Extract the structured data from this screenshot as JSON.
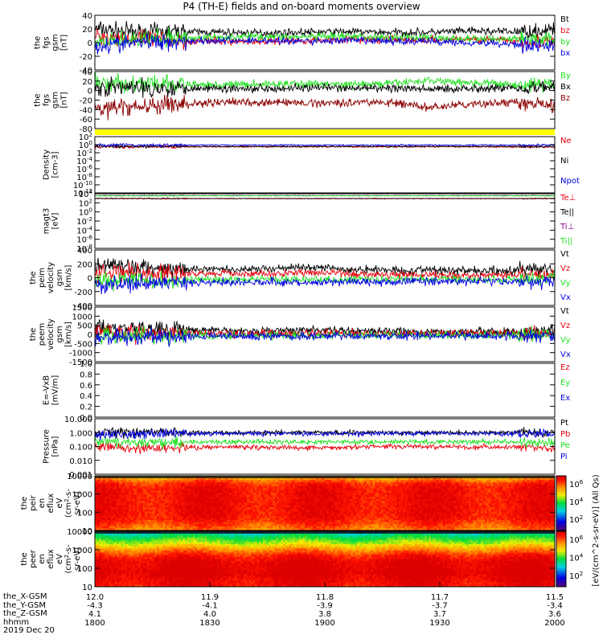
{
  "title": "P4 (TH-E) fields and on-board moments overview",
  "footer": {
    "row_labels": [
      "the_X-GSM",
      "the_Y-GSM",
      "the_Z-GSM",
      "hhmm"
    ],
    "date": "2019 Dec 20",
    "columns": [
      [
        "12.0",
        "-4.3",
        "4.1",
        "1800"
      ],
      [
        "11.9",
        "-4.1",
        "4.0",
        "1830"
      ],
      [
        "11.8",
        "-3.9",
        "3.8",
        "1900"
      ],
      [
        "11.7",
        "-3.7",
        "3.7",
        "1930"
      ],
      [
        "11.5",
        "-3.4",
        "3.6",
        "2000"
      ]
    ]
  },
  "colorbar": {
    "label": "[eV/(cm^2-s-sr-eV)] (All Qs)",
    "top_ticks": [
      "10^6",
      "10^4",
      "10^2"
    ],
    "bottom_ticks": [
      "10^6",
      "10^4",
      "10^2"
    ]
  },
  "chart_data": [
    {
      "type": "line",
      "ylabel": [
        "the",
        "fgs",
        "gsm",
        "[nT]"
      ],
      "ylim": [
        -40,
        40
      ],
      "yticks": [
        "40",
        "20",
        "0",
        "-20",
        "-40"
      ],
      "series": [
        {
          "name": "Bt",
          "color": "#000000",
          "values": [
            20,
            15,
            16,
            15,
            14,
            15,
            16,
            15,
            15,
            17,
            16,
            18
          ]
        },
        {
          "name": "bz",
          "color": "#e8000b",
          "values": [
            10,
            5,
            3,
            2,
            2,
            3,
            5,
            4,
            4,
            5,
            3,
            0
          ]
        },
        {
          "name": "by",
          "color": "#1fe01f",
          "values": [
            0,
            5,
            6,
            8,
            9,
            8,
            9,
            8,
            7,
            5,
            6,
            5
          ]
        },
        {
          "name": "bx",
          "color": "#0000e0",
          "values": [
            -5,
            0,
            2,
            3,
            3,
            2,
            3,
            2,
            2,
            0,
            -2,
            -5
          ]
        }
      ]
    },
    {
      "type": "line",
      "ylabel": [
        "the",
        "fgs",
        "gsm",
        "[nT]"
      ],
      "ylim": [
        -90,
        40
      ],
      "yticks": [
        "40",
        "20",
        "0",
        "-20",
        "-40",
        "-60",
        "-80"
      ],
      "series": [
        {
          "name": "By",
          "color": "#1fe01f",
          "values": [
            15,
            12,
            10,
            10,
            11,
            12,
            10,
            12,
            20,
            15,
            10,
            12
          ]
        },
        {
          "name": "Bx",
          "color": "#000000",
          "values": [
            5,
            2,
            3,
            2,
            2,
            3,
            2,
            2,
            0,
            2,
            3,
            5
          ]
        },
        {
          "name": "Bz",
          "color": "#8b0000",
          "values": [
            -45,
            -40,
            -35,
            -30,
            -30,
            -32,
            -30,
            -30,
            -42,
            -35,
            -30,
            -40
          ]
        }
      ]
    },
    {
      "type": "line",
      "ylabel": [
        "Density",
        "[cm-3]"
      ],
      "ylim_log": [
        -12,
        2
      ],
      "yticks": [
        "10^2",
        "10^0",
        "10^-2",
        "10^-4",
        "10^-6",
        "10^-8",
        "10^-10",
        "10^-12"
      ],
      "series": [
        {
          "name": "Ne",
          "color": "#e8000b",
          "values": [
            0.3,
            0.3,
            0.3,
            0.3,
            0.3,
            0.3,
            0.3,
            0.3,
            0.3,
            0.3,
            0.3,
            0.3
          ]
        },
        {
          "name": "Ni",
          "color": "#000000",
          "values": [
            0.35,
            0.35,
            0.35,
            0.35,
            0.35,
            0.35,
            0.35,
            0.35,
            0.35,
            0.35,
            0.35,
            0.35
          ]
        },
        {
          "name": "Npot",
          "color": "#0000e0",
          "values": [
            0.8,
            0.8,
            0.8,
            0.8,
            0.8,
            0.8,
            0.8,
            0.8,
            0.8,
            0.8,
            0.8,
            0.8
          ]
        }
      ]
    },
    {
      "type": "line",
      "ylabel": [
        "magt3",
        "[eV]"
      ],
      "ylim_log": [
        -8,
        4
      ],
      "yticks": [
        "10^4",
        "10^2",
        "10^0",
        "10^-2",
        "10^-4",
        "10^-6",
        "10^-8"
      ],
      "series": [
        {
          "name": "Te⊥",
          "color": "#e8000b",
          "values": [
            800,
            800,
            800,
            800,
            800,
            800,
            800,
            800,
            800,
            800,
            800,
            800
          ]
        },
        {
          "name": "Te||",
          "color": "#000000",
          "values": [
            900,
            900,
            900,
            900,
            900,
            900,
            900,
            900,
            900,
            900,
            900,
            900
          ]
        },
        {
          "name": "Ti⊥",
          "color": "#8b008b",
          "values": [
            4000,
            4000,
            4000,
            4000,
            4000,
            4000,
            4000,
            4000,
            4000,
            4000,
            4000,
            4000
          ]
        },
        {
          "name": "Ti||",
          "color": "#1fe01f",
          "values": [
            3500,
            3500,
            3500,
            3500,
            3500,
            3500,
            3500,
            3500,
            3500,
            3500,
            3500,
            3500
          ]
        }
      ]
    },
    {
      "type": "line",
      "ylabel": [
        "the",
        "peim",
        "velocity",
        "gsm",
        "[km/s]"
      ],
      "ylim": [
        -400,
        400
      ],
      "yticks": [
        "400",
        "200",
        "0",
        "-200",
        "-400"
      ],
      "series": [
        {
          "name": "Vt",
          "color": "#000000",
          "values": [
            180,
            150,
            130,
            120,
            120,
            150,
            120,
            110,
            110,
            100,
            110,
            150
          ]
        },
        {
          "name": "Vz",
          "color": "#e8000b",
          "values": [
            50,
            80,
            70,
            60,
            60,
            70,
            60,
            50,
            40,
            30,
            40,
            60
          ]
        },
        {
          "name": "Vy",
          "color": "#1fe01f",
          "values": [
            -50,
            -40,
            -30,
            -30,
            -20,
            -30,
            -30,
            -20,
            -20,
            -20,
            -20,
            -30
          ]
        },
        {
          "name": "Vx",
          "color": "#0000e0",
          "values": [
            -120,
            -80,
            -70,
            -60,
            -60,
            -70,
            -60,
            -60,
            -50,
            -50,
            -60,
            -80
          ]
        }
      ]
    },
    {
      "type": "line",
      "ylabel": [
        "the",
        "peem",
        "velocity",
        "gsm",
        "[km/s]"
      ],
      "ylim": [
        -1500,
        1500
      ],
      "yticks": [
        "1500",
        "1000",
        "500",
        "0",
        "-500",
        "-1000",
        "-1500"
      ],
      "series": [
        {
          "name": "Vt",
          "color": "#000000",
          "values": [
            400,
            300,
            250,
            200,
            200,
            250,
            200,
            180,
            150,
            150,
            150,
            200
          ]
        },
        {
          "name": "Vz",
          "color": "#e8000b",
          "values": [
            100,
            80,
            60,
            50,
            50,
            60,
            50,
            40,
            40,
            40,
            40,
            50
          ]
        },
        {
          "name": "Vy",
          "color": "#1fe01f",
          "values": [
            -100,
            -80,
            -60,
            -50,
            -50,
            -60,
            -50,
            -40,
            -40,
            -40,
            -40,
            -50
          ]
        },
        {
          "name": "Vx",
          "color": "#0000e0",
          "values": [
            -200,
            -150,
            -120,
            -100,
            -100,
            -120,
            -100,
            -90,
            -80,
            -80,
            -80,
            -100
          ]
        }
      ]
    },
    {
      "type": "line",
      "ylabel": [
        "E=-VxB",
        "[mV/m]"
      ],
      "ylim": [
        0,
        1
      ],
      "yticks": [
        "1.0",
        "0.8",
        "0.6",
        "0.4",
        "0.2",
        "0.0"
      ],
      "series": [
        {
          "name": "Ez",
          "color": "#e8000b",
          "values": []
        },
        {
          "name": "Ey",
          "color": "#1fe01f",
          "values": []
        },
        {
          "name": "Ex",
          "color": "#0000e0",
          "values": []
        }
      ]
    },
    {
      "type": "line",
      "ylabel": [
        "Pressure",
        "[nPa]"
      ],
      "ylim_log": [
        -3,
        1
      ],
      "yticks": [
        "10.000",
        "1.000",
        "0.100",
        "0.010",
        "0.001"
      ],
      "series": [
        {
          "name": "Pt",
          "color": "#000000",
          "values": [
            0.9,
            0.95,
            1.0,
            1.0,
            1.0,
            1.0,
            1.0,
            1.0,
            1.0,
            1.0,
            1.0,
            1.0
          ]
        },
        {
          "name": "Pb",
          "color": "#e8000b",
          "values": [
            0.1,
            0.08,
            0.08,
            0.09,
            0.09,
            0.08,
            0.09,
            0.1,
            0.1,
            0.09,
            0.09,
            0.08
          ]
        },
        {
          "name": "Pe",
          "color": "#1fe01f",
          "values": [
            0.25,
            0.2,
            0.2,
            0.22,
            0.22,
            0.2,
            0.22,
            0.2,
            0.22,
            0.22,
            0.22,
            0.2
          ]
        },
        {
          "name": "Pi",
          "color": "#0000e0",
          "values": [
            0.75,
            0.8,
            0.85,
            0.85,
            0.85,
            0.85,
            0.85,
            0.85,
            0.85,
            0.85,
            0.85,
            0.85
          ]
        }
      ]
    },
    {
      "type": "heatmap",
      "ylabel": [
        "the",
        "peir",
        "en",
        "eflux",
        "eV",
        "(cm^2-s-",
        "sr-eV)"
      ],
      "ylim_log": [
        1,
        4.3
      ],
      "yticks": [
        "10000",
        "1000",
        "100",
        "10"
      ],
      "bands_log10_energy": [
        1.0,
        1.3,
        1.7,
        2.0,
        2.5,
        3.0,
        3.5,
        3.8,
        4.0,
        4.2,
        4.3
      ],
      "level_log10_eflux": [
        6.2,
        6.5,
        6.9,
        7.0,
        7.0,
        7.0,
        7.0,
        6.8,
        6.4,
        5.9,
        5.2
      ]
    },
    {
      "type": "heatmap",
      "ylabel": [
        "the",
        "peer",
        "en",
        "eflux",
        "eV",
        "(cm^2-s-",
        "sr-eV)"
      ],
      "ylim_log": [
        0.8,
        4.3
      ],
      "yticks": [
        "10000",
        "1000",
        "100",
        "10"
      ],
      "bands_log10_energy": [
        0.9,
        1.3,
        1.7,
        2.0,
        2.4,
        2.8,
        3.2,
        3.5,
        3.8,
        4.1,
        4.3
      ],
      "level_log10_eflux": [
        7.0,
        7.2,
        7.4,
        7.3,
        7.2,
        6.8,
        6.0,
        5.2,
        4.6,
        4.0,
        3.0
      ]
    }
  ]
}
